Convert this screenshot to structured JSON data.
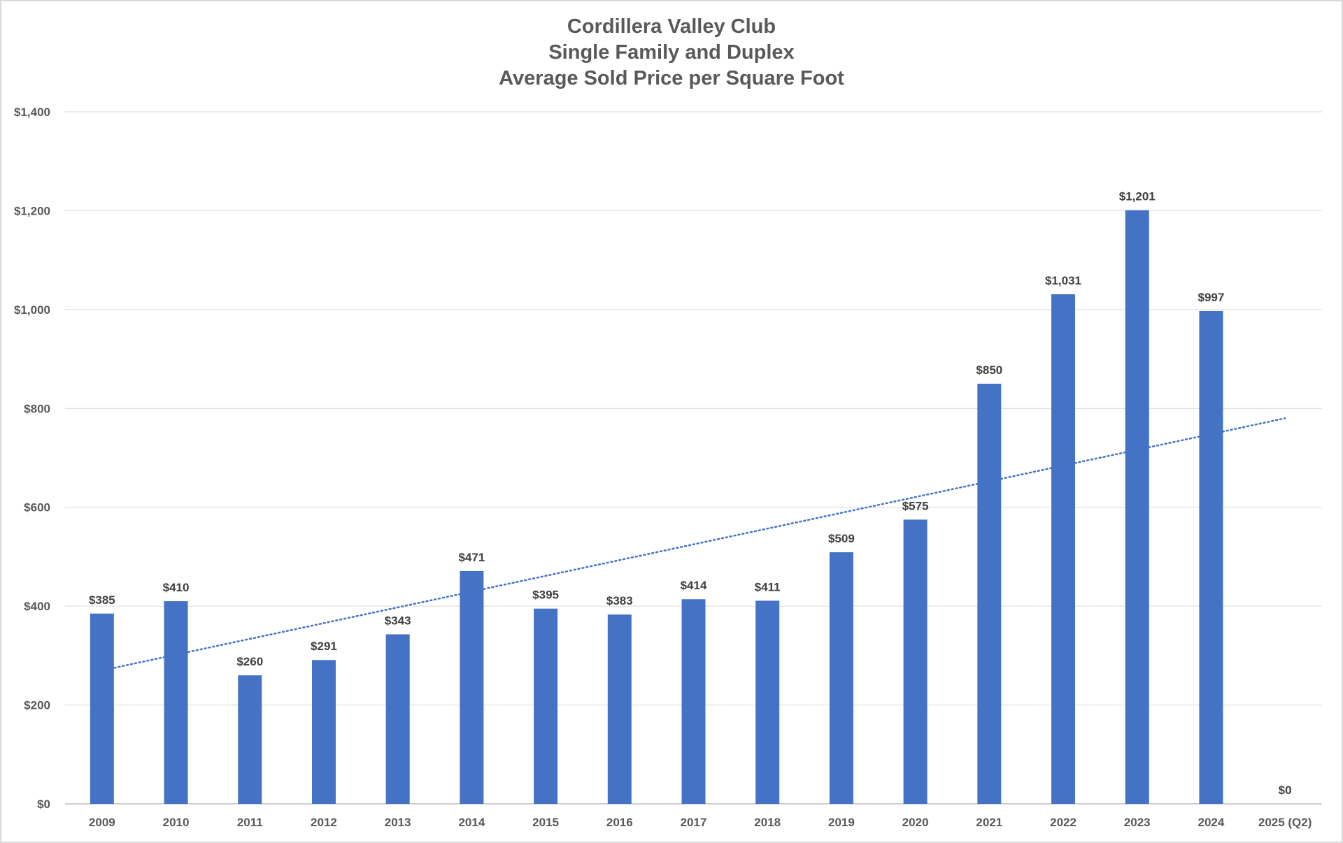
{
  "chart_data": {
    "type": "bar",
    "title": [
      "Cordillera Valley Club",
      "Single Family and Duplex",
      "Average Sold Price per Square Foot"
    ],
    "categories": [
      "2009",
      "2010",
      "2011",
      "2012",
      "2013",
      "2014",
      "2015",
      "2016",
      "2017",
      "2018",
      "2019",
      "2020",
      "2021",
      "2022",
      "2023",
      "2024",
      "2025 (Q2)"
    ],
    "values": [
      385,
      410,
      260,
      291,
      343,
      471,
      395,
      383,
      414,
      411,
      509,
      575,
      850,
      1031,
      1201,
      997,
      0
    ],
    "data_labels": [
      "$385",
      "$410",
      "$260",
      "$291",
      "$343",
      "$471",
      "$395",
      "$383",
      "$414",
      "$411",
      "$509",
      "$575",
      "$850",
      "$1,031",
      "$1,201",
      "$997",
      "$0"
    ],
    "yticks": [
      0,
      200,
      400,
      600,
      800,
      1000,
      1200,
      1400
    ],
    "ytick_labels": [
      "$0",
      "$200",
      "$400",
      "$600",
      "$800",
      "$1,000",
      "$1,200",
      "$1,400"
    ],
    "ylim": [
      0,
      1400
    ],
    "xlabel": "",
    "ylabel": "",
    "grid": true,
    "legend": "none",
    "trendline": {
      "type": "linear",
      "style": "dotted",
      "start_value": 270,
      "end_value": 780
    },
    "colors": {
      "bar": "#4472C4",
      "trendline": "#4472C4",
      "grid": "#d9d9d9",
      "text": "#595959"
    }
  }
}
